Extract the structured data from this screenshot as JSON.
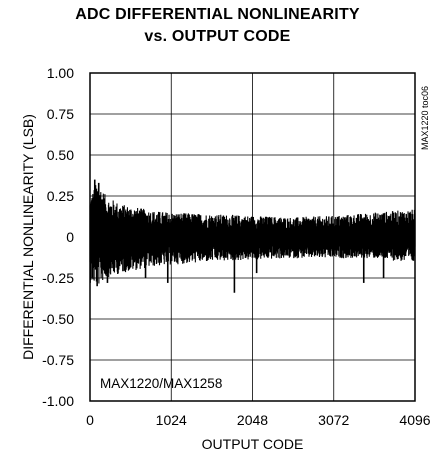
{
  "chart_data": {
    "type": "line",
    "title": [
      "ADC DIFFERENTIAL NONLINEARITY",
      "vs. OUTPUT CODE"
    ],
    "xlabel": "OUTPUT CODE",
    "ylabel": "DIFFERENTIAL NONLINEARITY (LSB)",
    "xlim": [
      0,
      4096
    ],
    "ylim": [
      -1.0,
      1.0
    ],
    "x_ticks": [
      0,
      1024,
      2048,
      3072,
      4096
    ],
    "x_tick_labels": [
      "0",
      "1024",
      "2048",
      "3072",
      "4096"
    ],
    "y_ticks": [
      1.0,
      0.75,
      0.5,
      0.25,
      0,
      -0.25,
      -0.5,
      -0.75,
      -1.0
    ],
    "y_tick_labels": [
      "1.00",
      "0.75",
      "0.50",
      "0.25",
      "0",
      "-0.25",
      "-0.50",
      "-0.75",
      "-1.00"
    ],
    "grid": true,
    "annotation": "MAX1220/MAX1258",
    "side_label": "MAX1220 toc06",
    "series": [
      {
        "color": "#000000",
        "envelope": {
          "x": [
            0,
            100,
            200,
            400,
            600,
            800,
            1024,
            1536,
            2048,
            2560,
            3072,
            3584,
            4096
          ],
          "upper": [
            0.25,
            0.35,
            0.25,
            0.2,
            0.18,
            0.16,
            0.15,
            0.14,
            0.13,
            0.12,
            0.13,
            0.15,
            0.17
          ],
          "lower": [
            -0.28,
            -0.3,
            -0.25,
            -0.22,
            -0.2,
            -0.18,
            -0.17,
            -0.15,
            -0.14,
            -0.13,
            -0.13,
            -0.13,
            -0.16
          ]
        },
        "spikes": [
          {
            "x": 60,
            "y": 0.35
          },
          {
            "x": 110,
            "y": 0.33
          },
          {
            "x": 90,
            "y": -0.3
          },
          {
            "x": 220,
            "y": -0.28
          },
          {
            "x": 700,
            "y": -0.25
          },
          {
            "x": 980,
            "y": -0.28
          },
          {
            "x": 1820,
            "y": -0.34
          },
          {
            "x": 2100,
            "y": -0.22
          },
          {
            "x": 3450,
            "y": -0.28
          },
          {
            "x": 3700,
            "y": -0.25
          }
        ]
      }
    ]
  }
}
